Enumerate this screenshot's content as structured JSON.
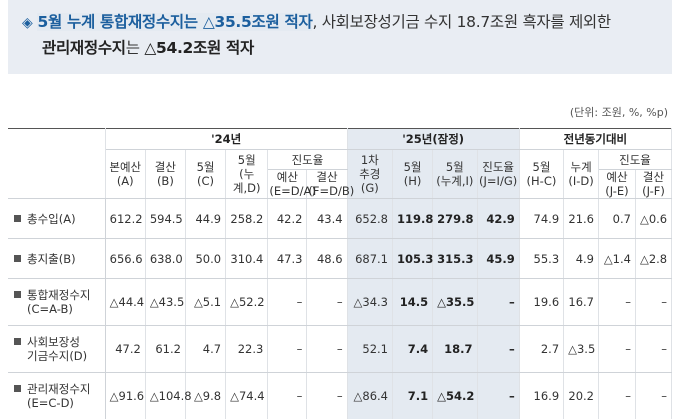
{
  "headline": {
    "line1_part1": "5월 누계 통합재정수지는 △35.5조원 적자",
    "line1_part2": ", 사회보장성기금 수지 18.7조원 흑자를 제외한",
    "line2_part1": "관리재정수지",
    "line2_part2": "는 ",
    "line2_part3": "△54.2조원 적자"
  },
  "unit": "(단위: 조원, %, %p)",
  "header": {
    "y24": "'24년",
    "y25": "'25년(잠정)",
    "yoy": "전년동기대비",
    "progress": "진도율",
    "progress2": "진도율",
    "c_main_budget": "본예산",
    "c_main_budget_sub": "(A)",
    "c_settle": "결산",
    "c_settle_sub": "(B)",
    "c_may": "5월",
    "c_may_sub": "(C)",
    "c_may_cum": "5월",
    "c_may_cum_sub": "(누계,D)",
    "c_p_budget": "예산",
    "c_p_budget_sub": "(E=D/A)",
    "c_p_settle": "결산",
    "c_p_settle_sub": "(F=D/B)",
    "c_supp": "1차",
    "c_supp2": "추경",
    "c_supp_sub": "(G)",
    "c_25_may": "5월",
    "c_25_may_sub": "(H)",
    "c_25_cum": "5월",
    "c_25_cum_sub": "(누계,I)",
    "c_25_prog": "진도율",
    "c_25_prog_sub": "(J=I/G)",
    "c_yoy_may": "5월",
    "c_yoy_may_sub": "(H-C)",
    "c_yoy_cum": "누계",
    "c_yoy_cum_sub": "(I-D)",
    "c_yoy_pb": "예산",
    "c_yoy_pb_sub": "(J-E)",
    "c_yoy_ps": "결산",
    "c_yoy_ps_sub": "(J-F)"
  },
  "rows": [
    {
      "label1": "총수입(A)",
      "label2": "",
      "cells": [
        "612.2",
        "594.5",
        "44.9",
        "258.2",
        "42.2",
        "43.4",
        "652.8",
        "119.8",
        "279.8",
        "42.9",
        "74.9",
        "21.6",
        "0.7",
        "△0.6"
      ]
    },
    {
      "label1": "총지출(B)",
      "label2": "",
      "cells": [
        "656.6",
        "638.0",
        "50.0",
        "310.4",
        "47.3",
        "48.6",
        "687.1",
        "105.3",
        "315.3",
        "45.9",
        "55.3",
        "4.9",
        "△1.4",
        "△2.8"
      ]
    },
    {
      "label1": "통합재정수지",
      "label2": "(C=A-B)",
      "cells": [
        "△44.4",
        "△43.5",
        "△5.1",
        "△52.2",
        "–",
        "–",
        "△34.3",
        "14.5",
        "△35.5",
        "–",
        "19.6",
        "16.7",
        "–",
        "–"
      ]
    },
    {
      "label1": "사회보장성",
      "label2": "기금수지(D)",
      "cells": [
        "47.2",
        "61.2",
        "4.7",
        "22.3",
        "–",
        "–",
        "52.1",
        "7.4",
        "18.7",
        "–",
        "2.7",
        "△3.5",
        "–",
        "–"
      ]
    },
    {
      "label1": "관리재정수지",
      "label2": "(E=C-D)",
      "cells": [
        "△91.6",
        "△104.8",
        "△9.8",
        "△74.4",
        "–",
        "–",
        "△86.4",
        "7.1",
        "△54.2",
        "–",
        "16.9",
        "20.2",
        "–",
        "–"
      ]
    }
  ]
}
